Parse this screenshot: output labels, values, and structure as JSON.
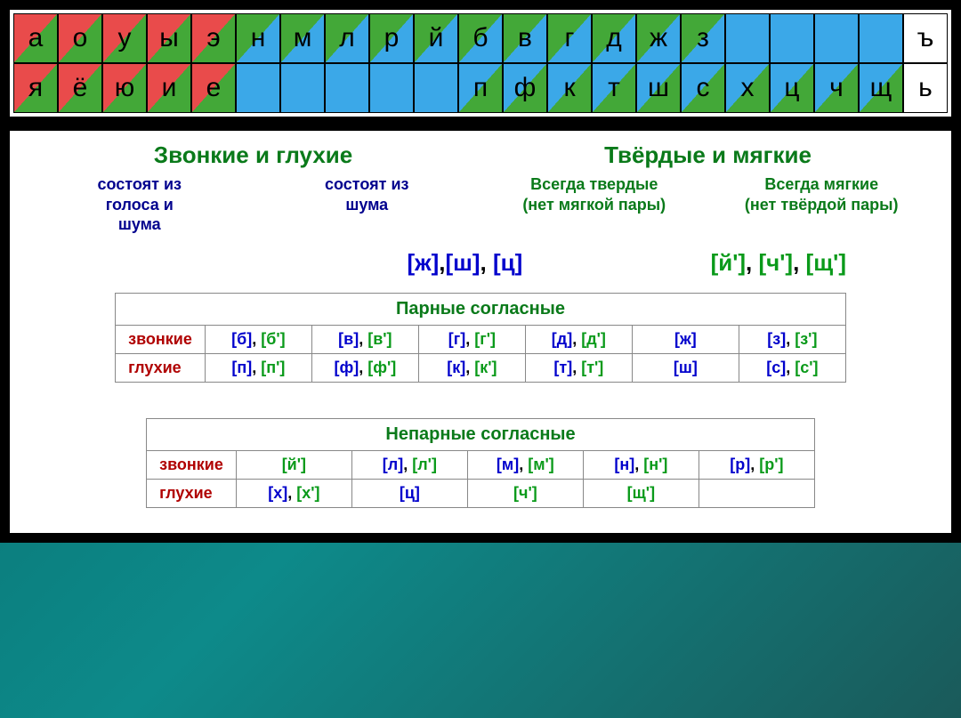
{
  "colors": {
    "red": "#e94b4b",
    "green": "#43a838",
    "blue": "#3ba8e8",
    "title_green": "#0a7a1a",
    "label_blue": "#01018e",
    "row_red": "#b00000",
    "phon_blue": "#0000cc",
    "phon_green": "#0a9a1a"
  },
  "letters": {
    "row1": [
      {
        "ch": "а",
        "style": "diag-rg"
      },
      {
        "ch": "о",
        "style": "diag-rg"
      },
      {
        "ch": "у",
        "style": "diag-rg"
      },
      {
        "ch": "ы",
        "style": "diag-rg"
      },
      {
        "ch": "э",
        "style": "diag-rg"
      },
      {
        "ch": "н",
        "style": "diag-gb"
      },
      {
        "ch": "м",
        "style": "diag-gb"
      },
      {
        "ch": "л",
        "style": "diag-gb"
      },
      {
        "ch": "р",
        "style": "diag-gb"
      },
      {
        "ch": "й",
        "style": "diag-gb"
      },
      {
        "ch": "б",
        "style": "diag-gb"
      },
      {
        "ch": "в",
        "style": "diag-gb"
      },
      {
        "ch": "г",
        "style": "diag-gb"
      },
      {
        "ch": "д",
        "style": "diag-gb"
      },
      {
        "ch": "ж",
        "style": "diag-gb"
      },
      {
        "ch": "з",
        "style": "diag-gb"
      },
      {
        "ch": "",
        "style": "solid-b"
      },
      {
        "ch": "",
        "style": "solid-b"
      },
      {
        "ch": "",
        "style": "solid-b"
      },
      {
        "ch": "",
        "style": "solid-b"
      },
      {
        "ch": "ъ",
        "style": "solid-w"
      }
    ],
    "row2": [
      {
        "ch": "я",
        "style": "diag-rg"
      },
      {
        "ch": "ё",
        "style": "diag-rg"
      },
      {
        "ch": "ю",
        "style": "diag-rg"
      },
      {
        "ch": "и",
        "style": "diag-rg"
      },
      {
        "ch": "е",
        "style": "diag-rg"
      },
      {
        "ch": "",
        "style": "solid-b"
      },
      {
        "ch": "",
        "style": "solid-b"
      },
      {
        "ch": "",
        "style": "solid-b"
      },
      {
        "ch": "",
        "style": "solid-b"
      },
      {
        "ch": "",
        "style": "solid-b"
      },
      {
        "ch": "п",
        "style": "diag-bg"
      },
      {
        "ch": "ф",
        "style": "diag-bg"
      },
      {
        "ch": "к",
        "style": "diag-bg"
      },
      {
        "ch": "т",
        "style": "diag-bg"
      },
      {
        "ch": "ш",
        "style": "diag-bg"
      },
      {
        "ch": "с",
        "style": "diag-bg"
      },
      {
        "ch": "х",
        "style": "diag-bg"
      },
      {
        "ch": "ц",
        "style": "diag-bg"
      },
      {
        "ch": "ч",
        "style": "diag-bg"
      },
      {
        "ch": "щ",
        "style": "diag-bg"
      },
      {
        "ch": "ь",
        "style": "solid-w"
      }
    ]
  },
  "headings": {
    "left_title": "Звонкие и глухие",
    "right_title": "Твёрдые и мягкие",
    "col1_line1": "состоят из",
    "col1_line2": "голоса и",
    "col1_line3": "шума",
    "col2_line1": "состоят из",
    "col2_line2": "шума",
    "col3_line1": "Всегда твердые",
    "col3_line2": "(нет мягкой пары)",
    "col4_line1": "Всегда мягкие",
    "col4_line2": "(нет твёрдой пары)"
  },
  "phon": {
    "hard": [
      {
        "t": "[ж]",
        "c": "blue"
      },
      {
        "t": ",",
        "c": "black"
      },
      {
        "t": "[ш]",
        "c": "blue"
      },
      {
        "t": ", ",
        "c": "black"
      },
      {
        "t": "[ц]",
        "c": "blue"
      }
    ],
    "soft": [
      {
        "t": "[й']",
        "c": "green"
      },
      {
        "t": ",  ",
        "c": "black"
      },
      {
        "t": "[ч']",
        "c": "green"
      },
      {
        "t": ",  ",
        "c": "black"
      },
      {
        "t": "[щ']",
        "c": "green"
      }
    ]
  },
  "table1": {
    "title": "Парные согласные",
    "row_zvon": "звонкие",
    "row_glux": "глухие",
    "zvon": [
      [
        {
          "t": "[б]",
          "c": "blue"
        },
        {
          "t": ", ",
          "c": "black"
        },
        {
          "t": "[б']",
          "c": "green"
        }
      ],
      [
        {
          "t": "[в]",
          "c": "blue"
        },
        {
          "t": ", ",
          "c": "black"
        },
        {
          "t": "[в']",
          "c": "green"
        }
      ],
      [
        {
          "t": "[г]",
          "c": "blue"
        },
        {
          "t": ", ",
          "c": "black"
        },
        {
          "t": "[г']",
          "c": "green"
        }
      ],
      [
        {
          "t": "[д]",
          "c": "blue"
        },
        {
          "t": ", ",
          "c": "black"
        },
        {
          "t": "[д']",
          "c": "green"
        }
      ],
      [
        {
          "t": "[ж]",
          "c": "blue"
        }
      ],
      [
        {
          "t": "[з]",
          "c": "blue"
        },
        {
          "t": ", ",
          "c": "black"
        },
        {
          "t": "[з']",
          "c": "green"
        }
      ]
    ],
    "glux": [
      [
        {
          "t": "[п]",
          "c": "blue"
        },
        {
          "t": ", ",
          "c": "black"
        },
        {
          "t": "[п']",
          "c": "green"
        }
      ],
      [
        {
          "t": "[ф]",
          "c": "blue"
        },
        {
          "t": ", ",
          "c": "black"
        },
        {
          "t": "[ф']",
          "c": "green"
        }
      ],
      [
        {
          "t": "[к]",
          "c": "blue"
        },
        {
          "t": ", ",
          "c": "black"
        },
        {
          "t": "[к']",
          "c": "green"
        }
      ],
      [
        {
          "t": "[т]",
          "c": "blue"
        },
        {
          "t": ", ",
          "c": "black"
        },
        {
          "t": "[т']",
          "c": "green"
        }
      ],
      [
        {
          "t": "[ш]",
          "c": "blue"
        }
      ],
      [
        {
          "t": "[с]",
          "c": "blue"
        },
        {
          "t": ", ",
          "c": "black"
        },
        {
          "t": "[с']",
          "c": "green"
        }
      ]
    ]
  },
  "table2": {
    "title": "Непарные согласные",
    "row_zvon": "звонкие",
    "row_glux": "глухие",
    "zvon": [
      [
        {
          "t": "[й']",
          "c": "green"
        }
      ],
      [
        {
          "t": "[л]",
          "c": "blue"
        },
        {
          "t": ", ",
          "c": "black"
        },
        {
          "t": "[л']",
          "c": "green"
        }
      ],
      [
        {
          "t": "[м]",
          "c": "blue"
        },
        {
          "t": ", ",
          "c": "black"
        },
        {
          "t": "[м']",
          "c": "green"
        }
      ],
      [
        {
          "t": "[н]",
          "c": "blue"
        },
        {
          "t": ", ",
          "c": "black"
        },
        {
          "t": "[н']",
          "c": "green"
        }
      ],
      [
        {
          "t": "[р]",
          "c": "blue"
        },
        {
          "t": ", ",
          "c": "black"
        },
        {
          "t": "[р']",
          "c": "green"
        }
      ]
    ],
    "glux": [
      [
        {
          "t": "[х]",
          "c": "blue"
        },
        {
          "t": ", ",
          "c": "black"
        },
        {
          "t": "[х']",
          "c": "green"
        }
      ],
      [
        {
          "t": "[ц]",
          "c": "blue"
        }
      ],
      [
        {
          "t": "[ч']",
          "c": "green"
        }
      ],
      [
        {
          "t": "[щ']",
          "c": "green"
        }
      ],
      []
    ]
  }
}
